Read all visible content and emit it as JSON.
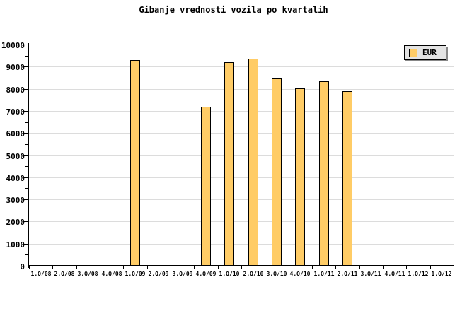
{
  "chart_data": {
    "type": "bar",
    "title": "Gibanje vrednosti vozila po kvartalih",
    "categories": [
      "1.Q/08",
      "2.Q/08",
      "3.Q/08",
      "4.Q/08",
      "1.Q/09",
      "2.Q/09",
      "3.Q/09",
      "4.Q/09",
      "1.Q/10",
      "2.Q/10",
      "3.Q/10",
      "4.Q/10",
      "1.Q/11",
      "2.Q/11",
      "3.Q/11",
      "4.Q/11",
      "1.Q/12",
      "1.Q/12"
    ],
    "series": [
      {
        "name": "EUR",
        "values": [
          null,
          null,
          null,
          null,
          9250,
          null,
          null,
          7150,
          9180,
          9340,
          8430,
          7980,
          8310,
          7870,
          null,
          null,
          null,
          null
        ]
      }
    ],
    "xlabel": "",
    "ylabel": "",
    "ylim": [
      0,
      10000
    ],
    "ytick_interval": 1000,
    "ytick_minor_interval": 500,
    "ytick_labels": [
      "0",
      "1000",
      "2000",
      "3000",
      "4000",
      "5000",
      "6000",
      "7000",
      "8000",
      "9000",
      "10000"
    ],
    "grid": "horizontal",
    "legend_position": "top-right",
    "colors": {
      "bar_fill": "#FFCC66",
      "bar_border": "#000000",
      "grid_line": "#DCDCDC",
      "axis": "#000000",
      "background": "#FFFFFF",
      "legend_bg": "#E3E3E3",
      "legend_shadow": "#888888",
      "text": "#000000"
    }
  }
}
